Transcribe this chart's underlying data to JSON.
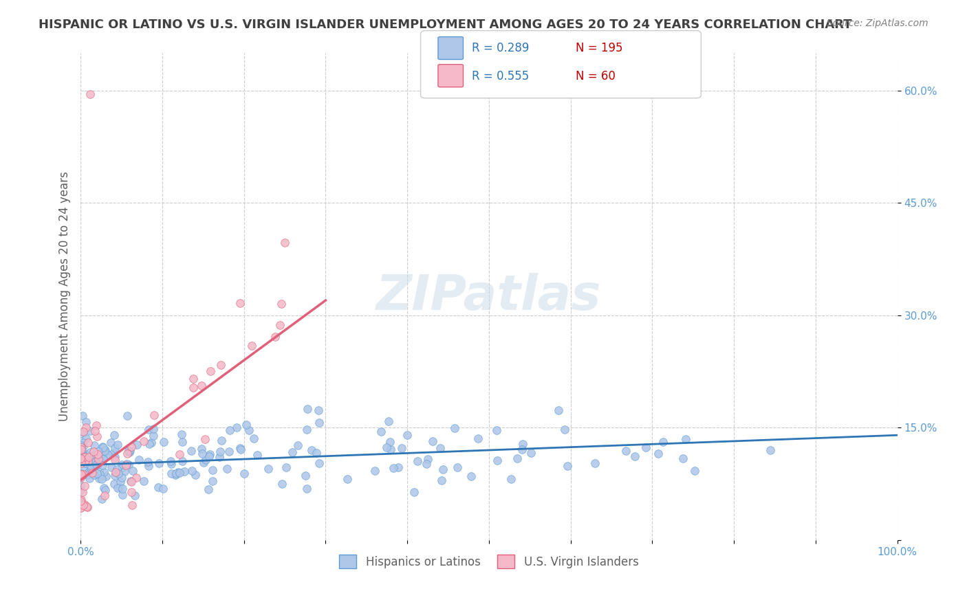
{
  "title": "HISPANIC OR LATINO VS U.S. VIRGIN ISLANDER UNEMPLOYMENT AMONG AGES 20 TO 24 YEARS CORRELATION CHART",
  "source": "Source: ZipAtlas.com",
  "xlabel_bottom": "",
  "ylabel": "Unemployment Among Ages 20 to 24 years",
  "xlim": [
    0.0,
    1.0
  ],
  "ylim": [
    0.0,
    0.65
  ],
  "x_ticks": [
    0.0,
    0.1,
    0.2,
    0.3,
    0.4,
    0.5,
    0.6,
    0.7,
    0.8,
    0.9,
    1.0
  ],
  "x_tick_labels": [
    "0.0%",
    "",
    "",
    "",
    "",
    "",
    "",
    "",
    "",
    "",
    "100.0%"
  ],
  "y_ticks": [
    0.0,
    0.15,
    0.3,
    0.45,
    0.6
  ],
  "y_tick_labels": [
    "",
    "15.0%",
    "30.0%",
    "45.0%",
    "60.0%"
  ],
  "legend_entries": [
    {
      "label": "Hispanics or Latinos",
      "color": "#aec6e8",
      "edge": "#5b9bd5"
    },
    {
      "label": "U.S. Virgin Islanders",
      "color": "#f4b8c8",
      "edge": "#e0607a"
    }
  ],
  "r_blue": 0.289,
  "n_blue": 195,
  "r_pink": 0.555,
  "n_pink": 60,
  "blue_line_color": "#2e75b6",
  "pink_line_color": "#e0607a",
  "blue_scatter_color": "#aec6e8",
  "pink_scatter_color": "#f4b8c8",
  "blue_scatter_edge": "#5b9bd5",
  "pink_scatter_edge": "#e0607a",
  "watermark": "ZIPatlas",
  "background_color": "#ffffff",
  "grid_color": "#cccccc",
  "title_color": "#404040",
  "source_color": "#808080",
  "axis_label_color": "#606060",
  "tick_label_color": "#5b9bd5",
  "legend_r_color": "#2e75b6",
  "legend_n_color": "#c00000"
}
